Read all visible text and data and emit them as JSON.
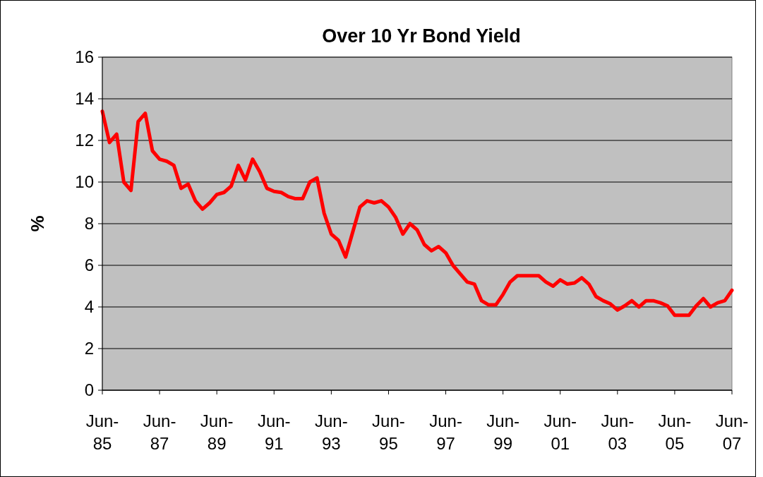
{
  "chart_data": {
    "type": "line",
    "title": "Over 10 Yr Bond Yield",
    "ylabel": "%",
    "categories": [
      "Jun-85",
      null,
      null,
      null,
      null,
      null,
      null,
      null,
      "Jun-87",
      null,
      null,
      null,
      null,
      null,
      null,
      null,
      "Jun-89",
      null,
      null,
      null,
      null,
      null,
      null,
      null,
      "Jun-91",
      null,
      null,
      null,
      null,
      null,
      null,
      null,
      "Jun-93",
      null,
      null,
      null,
      null,
      null,
      null,
      null,
      "Jun-95",
      null,
      null,
      null,
      null,
      null,
      null,
      null,
      "Jun-97",
      null,
      null,
      null,
      null,
      null,
      null,
      null,
      "Jun-99",
      null,
      null,
      null,
      null,
      null,
      null,
      null,
      "Jun-01",
      null,
      null,
      null,
      null,
      null,
      null,
      null,
      "Jun-03",
      null,
      null,
      null,
      null,
      null,
      null,
      null,
      "Jun-05",
      null,
      null,
      null,
      null,
      null,
      null,
      null,
      "Jun-07"
    ],
    "series": [
      {
        "color": "#ff0000",
        "values": [
          13.4,
          11.9,
          12.3,
          10.0,
          9.6,
          12.9,
          13.3,
          11.5,
          11.1,
          11.0,
          10.8,
          9.7,
          9.9,
          9.1,
          8.7,
          9.0,
          9.4,
          9.5,
          9.8,
          10.8,
          10.1,
          11.1,
          10.5,
          9.7,
          9.55,
          9.5,
          9.3,
          9.2,
          9.2,
          10.0,
          10.2,
          8.5,
          7.5,
          7.2,
          6.4,
          7.6,
          8.8,
          9.1,
          9.0,
          9.1,
          8.8,
          8.3,
          7.5,
          8.0,
          7.7,
          7.0,
          6.7,
          6.9,
          6.6,
          6.0,
          5.6,
          5.2,
          5.1,
          4.3,
          4.1,
          4.1,
          4.6,
          5.2,
          5.5,
          5.5,
          5.5,
          5.5,
          5.2,
          5.0,
          5.3,
          5.1,
          5.15,
          5.4,
          5.1,
          4.5,
          4.3,
          4.15,
          3.85,
          4.05,
          4.3,
          4.0,
          4.3,
          4.3,
          4.2,
          4.05,
          3.6,
          3.6,
          3.6,
          4.05,
          4.4,
          4.0,
          4.2,
          4.3,
          4.8
        ]
      }
    ],
    "ylim": [
      0,
      16
    ],
    "yticks": [
      0,
      2,
      4,
      6,
      8,
      10,
      12,
      14,
      16
    ],
    "grid": "y",
    "marker": "none",
    "line_style": "solid"
  }
}
